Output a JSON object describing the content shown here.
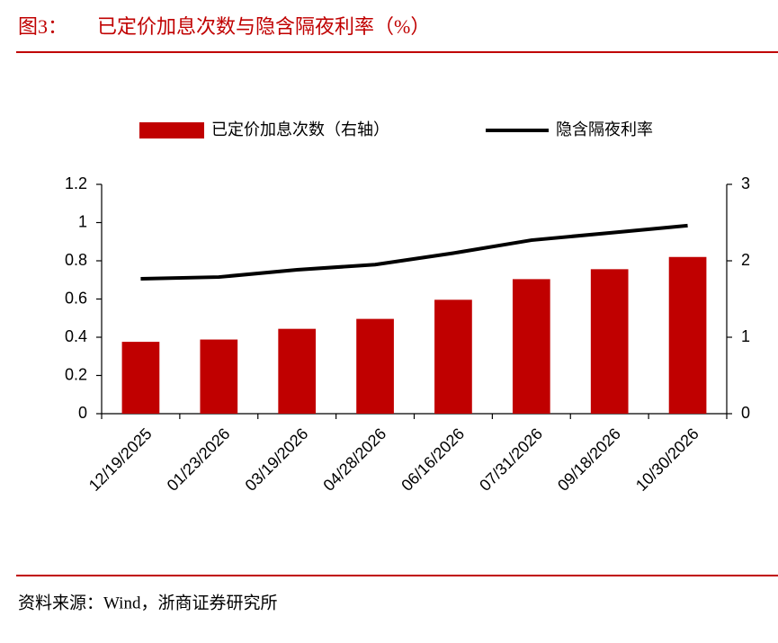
{
  "chart_data": {
    "type": "bar",
    "figure_label": "图3：",
    "title": "已定价加息次数与隐含隔夜利率（%）",
    "source": "资料来源：Wind，浙商证券研究所",
    "categories": [
      "12/19/2025",
      "01/23/2026",
      "03/19/2026",
      "04/28/2026",
      "06/16/2026",
      "07/31/2026",
      "09/18/2026",
      "10/30/2026"
    ],
    "series": [
      {
        "name": "已定价加息次数（右轴）",
        "type": "bar",
        "axis": "y2",
        "color": "#c00000",
        "values": [
          0.94,
          0.97,
          1.11,
          1.24,
          1.49,
          1.76,
          1.89,
          2.05
        ]
      },
      {
        "name": "隐含隔夜利率",
        "type": "line",
        "color": "#000000",
        "values": [
          0.706,
          0.715,
          0.753,
          0.78,
          0.84,
          0.908,
          0.946,
          0.984
        ]
      }
    ],
    "ylim": [
      0,
      1.2
    ],
    "yticks": [
      0,
      0.2,
      0.4,
      0.6,
      0.8,
      1,
      1.2
    ],
    "y2lim": [
      0,
      3
    ],
    "y2ticks": [
      0,
      1,
      2,
      3
    ],
    "legend": "top"
  }
}
